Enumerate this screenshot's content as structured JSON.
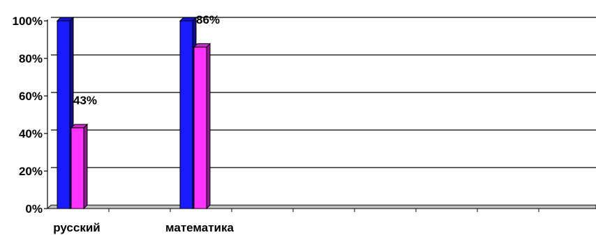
{
  "chart_data": {
    "type": "bar",
    "style": "3d-clustered-column",
    "categories": [
      "русский",
      "математика"
    ],
    "series": [
      {
        "color": "#1a1aff",
        "values": [
          100,
          100
        ]
      },
      {
        "color": "#ff33ff",
        "values": [
          43,
          86
        ]
      }
    ],
    "data_labels": [
      {
        "category": "русский",
        "series_index": 1,
        "text": "43%"
      },
      {
        "category": "математика",
        "series_index": 1,
        "text": "86%"
      }
    ],
    "y_ticks": [
      "0%",
      "20%",
      "40%",
      "60%",
      "80%",
      "100%"
    ],
    "ylim": [
      0,
      100
    ],
    "y_unit": "%",
    "grid": true,
    "legend": "none",
    "title": "",
    "xlabel": "",
    "ylabel": ""
  }
}
